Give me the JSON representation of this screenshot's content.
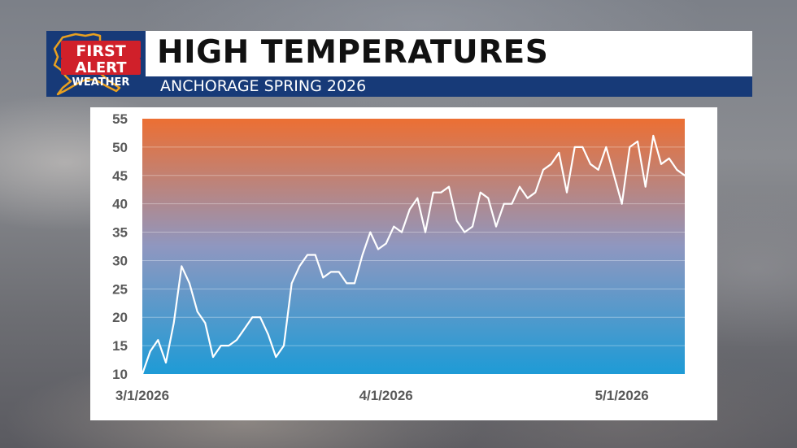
{
  "header": {
    "logo_line1": "FIRST",
    "logo_line2": "ALERT",
    "logo_line3": "WEATHER",
    "title": "HIGH TEMPERATURES",
    "subtitle": "ANCHORAGE SPRING 2026"
  },
  "colors": {
    "navy": "#173a78",
    "logo_red": "#d0202a",
    "logo_gold": "#e8a020",
    "gradient_top": "#ec6f33",
    "gradient_mid": "#8f97c0",
    "gradient_bottom": "#1e9bd6",
    "line": "#ffffff"
  },
  "chart_data": {
    "type": "line",
    "title": "",
    "xlabel": "",
    "ylabel": "",
    "ylim": [
      10,
      55
    ],
    "yticks": [
      10,
      15,
      20,
      25,
      30,
      35,
      40,
      45,
      50,
      55
    ],
    "xlim": [
      "3/1/2026",
      "5/9/2026"
    ],
    "xticks": [
      "3/1/2026",
      "4/1/2026",
      "5/1/2026"
    ],
    "grid": true,
    "legend": "none",
    "series": [
      {
        "x_start": "3/1/2026",
        "x_step_days": 1,
        "values": [
          10,
          14,
          16,
          12,
          19,
          29,
          26,
          21,
          19,
          13,
          15,
          15,
          16,
          18,
          20,
          20,
          17,
          13,
          15,
          26,
          29,
          31,
          31,
          27,
          28,
          28,
          26,
          26,
          31,
          35,
          32,
          33,
          36,
          35,
          39,
          41,
          35,
          42,
          42,
          43,
          37,
          35,
          36,
          42,
          41,
          36,
          40,
          40,
          43,
          41,
          42,
          46,
          47,
          49,
          42,
          50,
          50,
          47,
          46,
          50,
          45,
          40,
          50,
          51,
          43,
          52,
          47,
          48,
          46,
          45,
          46
        ]
      }
    ]
  }
}
